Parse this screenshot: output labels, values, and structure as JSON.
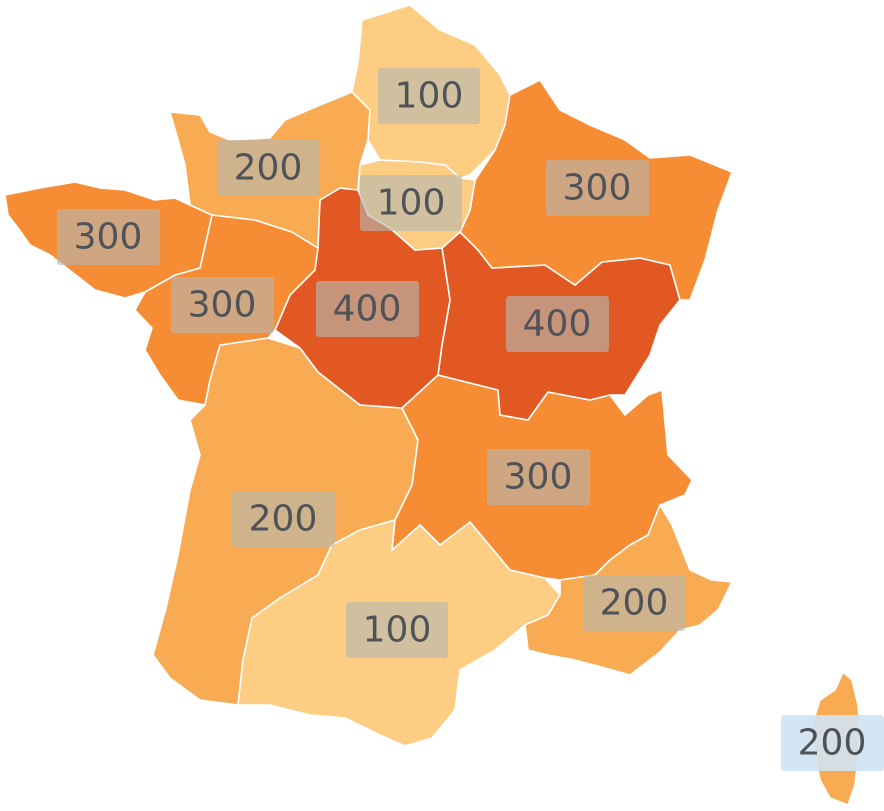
{
  "map": {
    "colors": {
      "100": "#fccd82",
      "200": "#f8ab52",
      "300": "#f68d35",
      "400": "#e25822"
    },
    "regions": [
      {
        "id": "hauts-de-france",
        "value": "100",
        "label": "100"
      },
      {
        "id": "normandie",
        "value": "200",
        "label": "200"
      },
      {
        "id": "ile-de-france",
        "value": "100",
        "label": "100"
      },
      {
        "id": "grand-est",
        "value": "300",
        "label": "300"
      },
      {
        "id": "bretagne",
        "value": "300",
        "label": "300"
      },
      {
        "id": "pays-de-la-loire",
        "value": "300",
        "label": "300"
      },
      {
        "id": "centre-val-de-loire",
        "value": "400",
        "label": "400"
      },
      {
        "id": "bourgogne-franche-comte",
        "value": "400",
        "label": "400"
      },
      {
        "id": "nouvelle-aquitaine",
        "value": "200",
        "label": "200"
      },
      {
        "id": "auvergne-rhone-alpes",
        "value": "300",
        "label": "300"
      },
      {
        "id": "occitanie",
        "value": "100",
        "label": "100"
      },
      {
        "id": "provence-alpes-cote-dazur",
        "value": "200",
        "label": "200"
      },
      {
        "id": "corse",
        "value": "200",
        "label": "200"
      }
    ]
  }
}
